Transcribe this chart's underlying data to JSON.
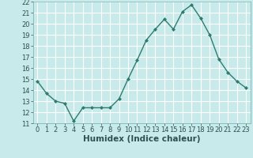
{
  "x": [
    0,
    1,
    2,
    3,
    4,
    5,
    6,
    7,
    8,
    9,
    10,
    11,
    12,
    13,
    14,
    15,
    16,
    17,
    18,
    19,
    20,
    21,
    22,
    23
  ],
  "y": [
    14.8,
    13.7,
    13.0,
    12.8,
    11.2,
    12.4,
    12.4,
    12.4,
    12.4,
    13.2,
    15.0,
    16.7,
    18.5,
    19.5,
    20.4,
    19.5,
    21.1,
    21.7,
    20.5,
    19.0,
    16.8,
    15.6,
    14.8,
    14.2
  ],
  "xlabel": "Humidex (Indice chaleur)",
  "xlim": [
    -0.5,
    23.5
  ],
  "ylim": [
    11,
    22
  ],
  "yticks": [
    11,
    12,
    13,
    14,
    15,
    16,
    17,
    18,
    19,
    20,
    21,
    22
  ],
  "xticks": [
    0,
    1,
    2,
    3,
    4,
    5,
    6,
    7,
    8,
    9,
    10,
    11,
    12,
    13,
    14,
    15,
    16,
    17,
    18,
    19,
    20,
    21,
    22,
    23
  ],
  "line_color": "#2d7d6e",
  "bg_color": "#c8eaea",
  "grid_color": "#ffffff",
  "marker": "D",
  "marker_size": 2.0,
  "line_width": 1.0,
  "tick_fontsize": 6.0,
  "xlabel_fontsize": 7.5
}
